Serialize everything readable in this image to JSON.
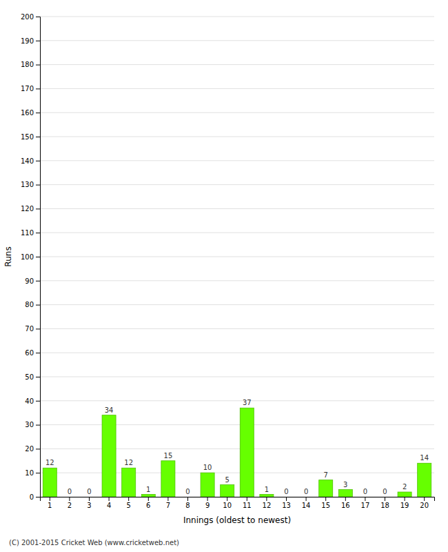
{
  "chart_data": {
    "type": "bar",
    "xlabel": "Innings (oldest to newest)",
    "ylabel": "Runs",
    "categories": [
      1,
      2,
      3,
      4,
      5,
      6,
      7,
      8,
      9,
      10,
      11,
      12,
      13,
      14,
      15,
      16,
      17,
      18,
      19,
      20
    ],
    "values": [
      12,
      0,
      0,
      34,
      12,
      1,
      15,
      0,
      10,
      5,
      37,
      1,
      0,
      0,
      7,
      3,
      0,
      0,
      2,
      14
    ],
    "color": "#66ff00",
    "ylim": [
      0,
      200
    ],
    "yticks": [
      0,
      10,
      20,
      30,
      40,
      50,
      60,
      70,
      80,
      90,
      100,
      110,
      120,
      130,
      140,
      150,
      160,
      170,
      180,
      190,
      200
    ],
    "grid": true,
    "data_labels": true,
    "annotations": [
      "(C) 2001-2015 Cricket Web (www.cricketweb.net)"
    ]
  }
}
